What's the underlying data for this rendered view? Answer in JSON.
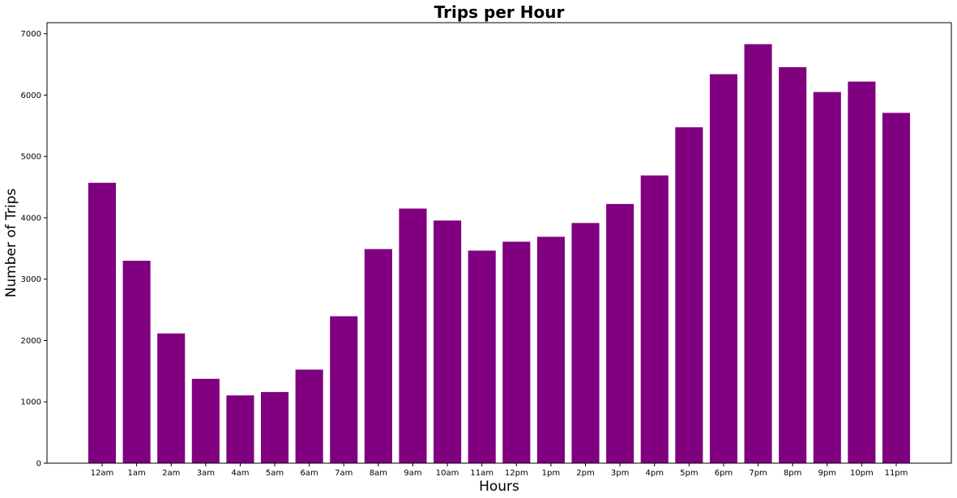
{
  "chart_data": {
    "type": "bar",
    "title": "Trips per Hour",
    "xlabel": "Hours",
    "ylabel": "Number of Trips",
    "categories": [
      "12am",
      "1am",
      "2am",
      "3am",
      "4am",
      "5am",
      "6am",
      "7am",
      "8am",
      "9am",
      "10am",
      "11am",
      "12pm",
      "1pm",
      "2pm",
      "3pm",
      "4pm",
      "5pm",
      "6pm",
      "7pm",
      "8pm",
      "9pm",
      "10pm",
      "11pm"
    ],
    "values": [
      4570,
      3300,
      2115,
      1375,
      1105,
      1160,
      1525,
      2395,
      3490,
      4150,
      3955,
      3465,
      3610,
      3690,
      3915,
      4225,
      4690,
      5475,
      6340,
      6830,
      6455,
      6050,
      6220,
      5710
    ],
    "ylim": [
      0,
      7180
    ],
    "yticks": [
      0,
      1000,
      2000,
      3000,
      4000,
      5000,
      6000,
      7000
    ],
    "bar_color": "#800080",
    "grid": false,
    "legend": "none"
  }
}
